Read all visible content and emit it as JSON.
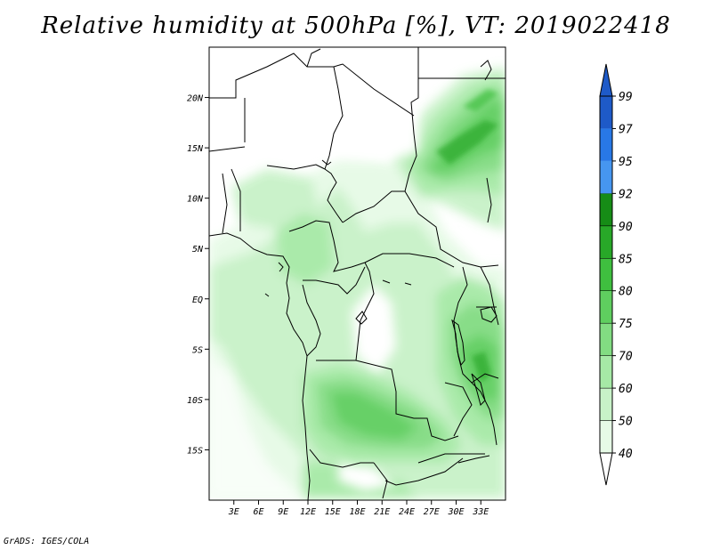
{
  "title": "Relative humidity at 500hPa [%], VT: 2019022418",
  "footer": "GrADS: IGES/COLA",
  "map": {
    "lon_range": [
      0,
      36
    ],
    "lat_range": [
      -20,
      25
    ],
    "lat_ticks": [
      {
        "value": 20,
        "label": "20N"
      },
      {
        "value": 15,
        "label": "15N"
      },
      {
        "value": 10,
        "label": "10N"
      },
      {
        "value": 5,
        "label": "5N"
      },
      {
        "value": 0,
        "label": "EQ"
      },
      {
        "value": -5,
        "label": "5S"
      },
      {
        "value": -10,
        "label": "10S"
      },
      {
        "value": -15,
        "label": "15S"
      }
    ],
    "lon_ticks": [
      {
        "value": 3,
        "label": "3E"
      },
      {
        "value": 6,
        "label": "6E"
      },
      {
        "value": 9,
        "label": "9E"
      },
      {
        "value": 12,
        "label": "12E"
      },
      {
        "value": 15,
        "label": "15E"
      },
      {
        "value": 18,
        "label": "18E"
      },
      {
        "value": 21,
        "label": "21E"
      },
      {
        "value": 24,
        "label": "24E"
      },
      {
        "value": 27,
        "label": "27E"
      },
      {
        "value": 30,
        "label": "30E"
      },
      {
        "value": 33,
        "label": "33E"
      }
    ]
  },
  "colorbar": {
    "levels": [
      "40",
      "50",
      "60",
      "70",
      "75",
      "80",
      "85",
      "90",
      "92",
      "95",
      "97",
      "99"
    ],
    "colors": [
      "#ffffff",
      "#e6fae6",
      "#c8f2c8",
      "#a6e9a6",
      "#82dc82",
      "#5fce5f",
      "#3fbf3f",
      "#28a828",
      "#168c16",
      "#4696f0",
      "#2878e6",
      "#1e5ac8"
    ]
  }
}
